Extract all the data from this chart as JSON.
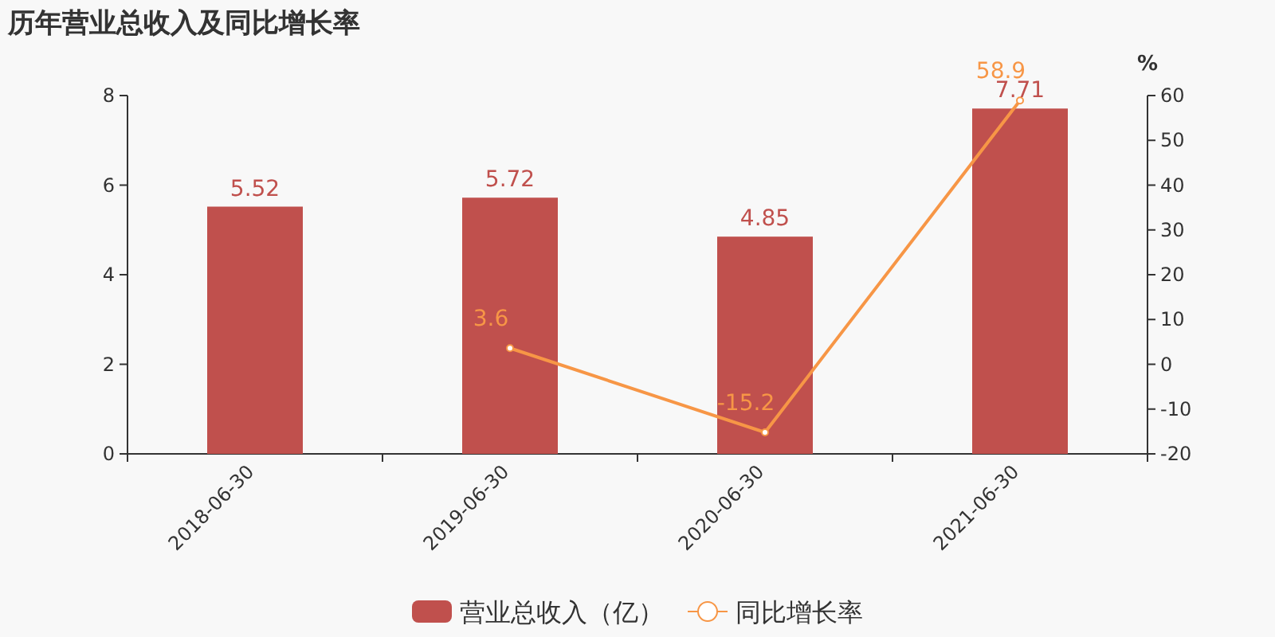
{
  "chart_data": {
    "type": "bar",
    "title": "历年营业总收入及同比增长率",
    "categories": [
      "2018-06-30",
      "2019-06-30",
      "2020-06-30",
      "2021-06-30"
    ],
    "series": [
      {
        "name": "营业总收入（亿）",
        "color": "#c0504d",
        "values": [
          5.52,
          5.72,
          4.85,
          7.71
        ]
      },
      {
        "name": "同比增长率",
        "type": "line",
        "axis": "y2",
        "color": "#f79646",
        "marker": "circle",
        "values": [
          null,
          3.6,
          -15.2,
          58.9
        ]
      }
    ],
    "ylim": [
      0,
      8
    ],
    "yticks": [
      0,
      2,
      4,
      6,
      8
    ],
    "y2lim": [
      -20,
      60
    ],
    "y2ticks": [
      -20,
      -10,
      0,
      10,
      20,
      30,
      40,
      50,
      60
    ],
    "y2label": "%",
    "data_labels": true,
    "legend": "bottom",
    "grid": false
  }
}
